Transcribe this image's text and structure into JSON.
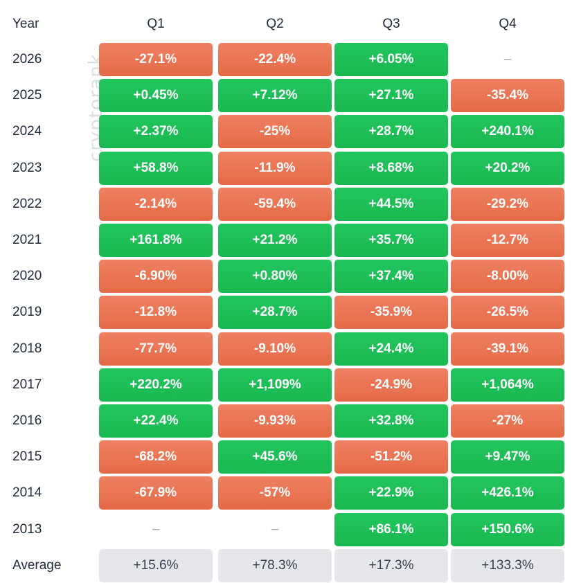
{
  "chart_data": {
    "type": "heatmap",
    "corner_label": "Year",
    "columns": [
      "Q1",
      "Q2",
      "Q3",
      "Q4"
    ],
    "watermark": "cryptorank",
    "colors": {
      "positive": "#20c05a",
      "negative": "#ea7556",
      "average": "#e5e7eb",
      "empty_dash": "#9ca3af"
    },
    "rows": [
      {
        "year": "2026",
        "values": [
          "-27.1%",
          "-22.4%",
          "+6.05%",
          "–"
        ]
      },
      {
        "year": "2025",
        "values": [
          "+0.45%",
          "+7.12%",
          "+27.1%",
          "-35.4%"
        ]
      },
      {
        "year": "2024",
        "values": [
          "+2.37%",
          "-25%",
          "+28.7%",
          "+240.1%"
        ]
      },
      {
        "year": "2023",
        "values": [
          "+58.8%",
          "-11.9%",
          "+8.68%",
          "+20.2%"
        ]
      },
      {
        "year": "2022",
        "values": [
          "-2.14%",
          "-59.4%",
          "+44.5%",
          "-29.2%"
        ]
      },
      {
        "year": "2021",
        "values": [
          "+161.8%",
          "+21.2%",
          "+35.7%",
          "-12.7%"
        ]
      },
      {
        "year": "2020",
        "values": [
          "-6.90%",
          "+0.80%",
          "+37.4%",
          "-8.00%"
        ]
      },
      {
        "year": "2019",
        "values": [
          "-12.8%",
          "+28.7%",
          "-35.9%",
          "-26.5%"
        ]
      },
      {
        "year": "2018",
        "values": [
          "-77.7%",
          "-9.10%",
          "+24.4%",
          "-39.1%"
        ]
      },
      {
        "year": "2017",
        "values": [
          "+220.2%",
          "+1,109%",
          "-24.9%",
          "+1,064%"
        ]
      },
      {
        "year": "2016",
        "values": [
          "+22.4%",
          "-9.93%",
          "+32.8%",
          "-27%"
        ]
      },
      {
        "year": "2015",
        "values": [
          "-68.2%",
          "+45.6%",
          "-51.2%",
          "+9.47%"
        ]
      },
      {
        "year": "2014",
        "values": [
          "-67.9%",
          "-57%",
          "+22.9%",
          "+426.1%"
        ]
      },
      {
        "year": "2013",
        "values": [
          "–",
          "–",
          "+86.1%",
          "+150.6%"
        ]
      }
    ],
    "average": {
      "label": "Average",
      "values": [
        "+15.6%",
        "+78.3%",
        "+17.3%",
        "+133.3%"
      ]
    }
  }
}
